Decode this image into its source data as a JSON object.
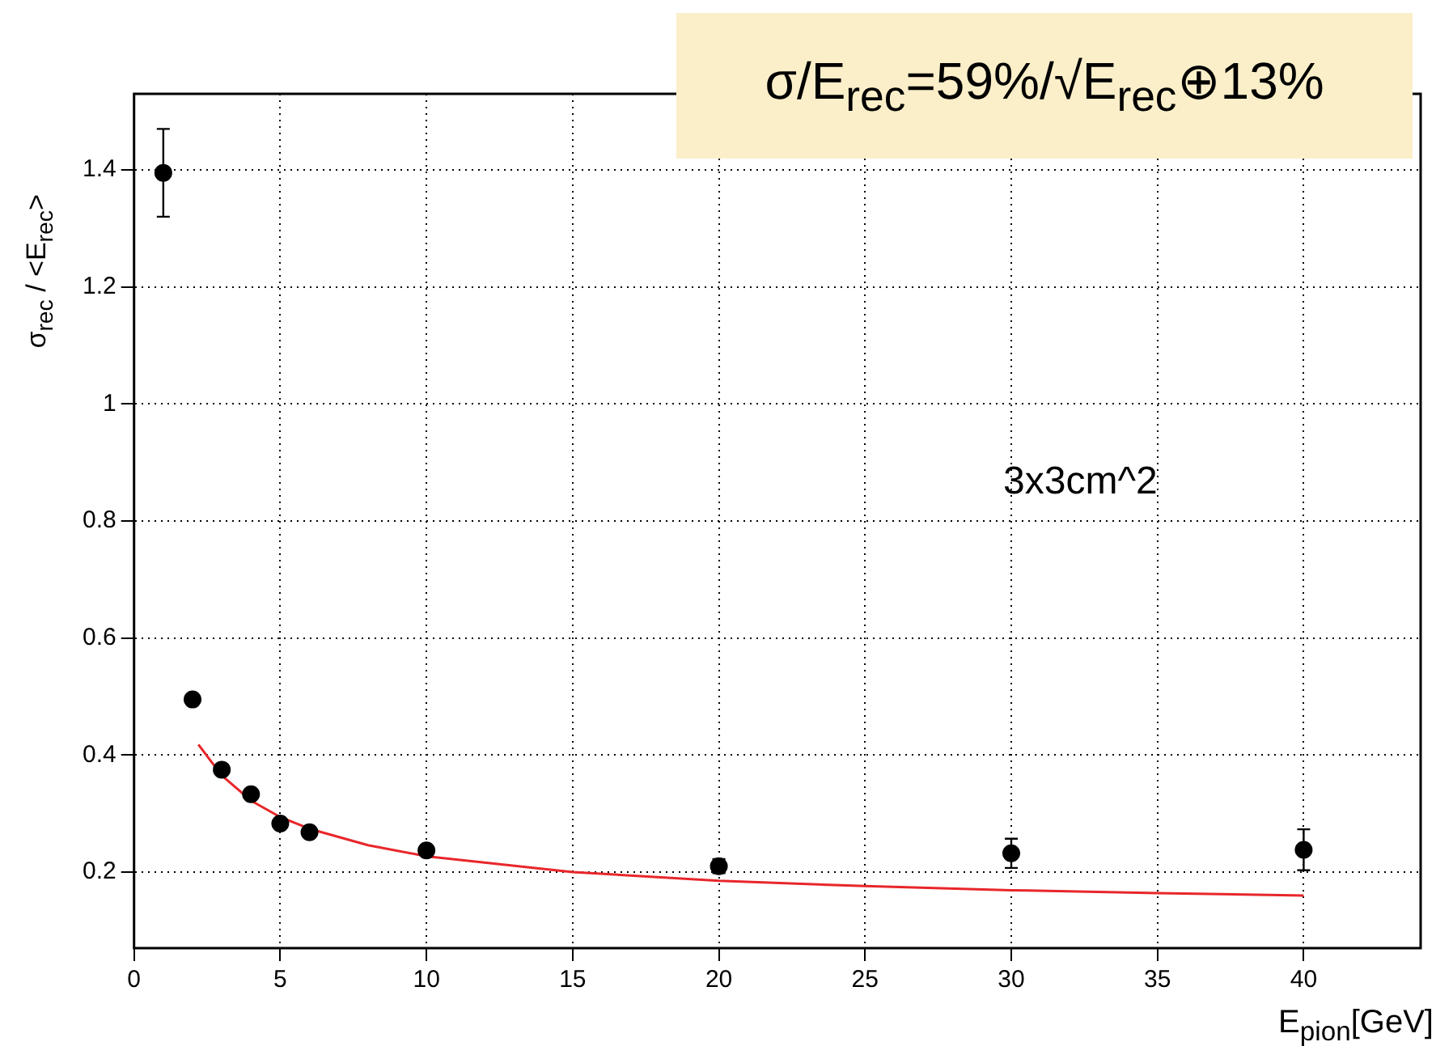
{
  "chart_data": {
    "type": "scatter",
    "xlabel": "E$_{pion}$[GeV]",
    "ylabel": "σ$_{rec}$ / <E$_{rec}$>",
    "annotations": [
      "σ/E$_{rec}$=59%/√E$_{rec}$⊕13%",
      "3x3cm^2"
    ],
    "xlim": [
      0,
      44
    ],
    "xticks": [
      0,
      5,
      10,
      15,
      20,
      25,
      30,
      35,
      40
    ],
    "ylim": [
      0.07,
      1.53
    ],
    "yticks": [
      0.2,
      0.4,
      0.6,
      0.8,
      {
        "value": 1,
        "label": "1"
      },
      1.2,
      1.4
    ],
    "grid": true,
    "legend": false,
    "series": [
      {
        "marker": "circle",
        "color": "#000000",
        "x": [
          1,
          2,
          3,
          4,
          5,
          6,
          10,
          20,
          30,
          40
        ],
        "values": [
          1.395,
          0.495,
          0.375,
          0.333,
          0.283,
          0.268,
          0.237,
          0.21,
          0.232,
          0.238
        ],
        "errors": [
          0.075,
          null,
          null,
          null,
          null,
          null,
          null,
          0.012,
          0.025,
          0.035
        ]
      },
      {
        "type": "line",
        "marker": "none",
        "color": "#e8262a",
        "x": [
          2.2,
          3,
          4,
          5,
          6,
          8,
          10,
          15,
          20,
          25,
          30,
          35,
          40
        ],
        "values": [
          0.418,
          0.365,
          0.322,
          0.294,
          0.274,
          0.246,
          0.227,
          0.2,
          0.185,
          0.176,
          0.169,
          0.164,
          0.16
        ]
      }
    ]
  }
}
